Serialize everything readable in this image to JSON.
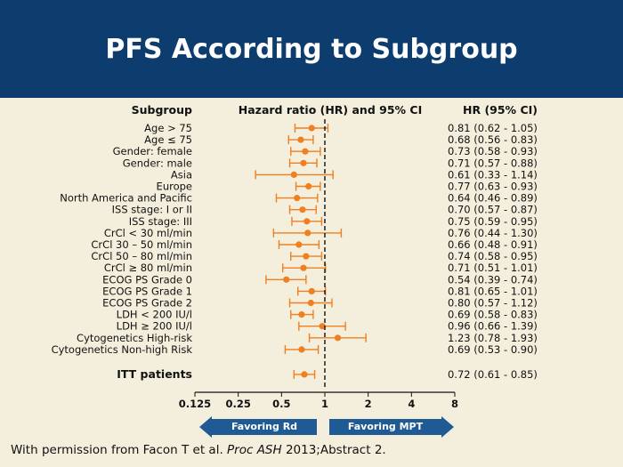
{
  "slide": {
    "title": "PFS According to Subgroup",
    "footnote_pre": "With permission from Facon T et al. ",
    "footnote_italic": "Proc ASH",
    "footnote_post": " 2013;Abstract 2."
  },
  "colors": {
    "header": "#0d3d6e",
    "background": "#f3efdc",
    "marker": "#f07f1f",
    "arrow": "#1f5a94"
  },
  "chart_data": {
    "type": "forest",
    "column_headers": {
      "subgroup": "Subgroup",
      "plot": "Hazard ratio (HR) and 95% CI",
      "hr": "HR (95% CI)"
    },
    "x_scale": "log2",
    "xlim": [
      0.125,
      8
    ],
    "x_ticks": [
      {
        "value": 0.125,
        "label": "0.125"
      },
      {
        "value": 0.25,
        "label": "0.25"
      },
      {
        "value": 0.5,
        "label": "0.5"
      },
      {
        "value": 1,
        "label": "1"
      },
      {
        "value": 2,
        "label": "2"
      },
      {
        "value": 4,
        "label": "4"
      },
      {
        "value": 8,
        "label": "8"
      }
    ],
    "reference_line": 1,
    "rows": [
      {
        "label": "Age > 75",
        "hr": 0.81,
        "lo": 0.62,
        "hi": 1.05,
        "text": "0.81 (0.62 - 1.05)"
      },
      {
        "label": "Age ≤ 75",
        "hr": 0.68,
        "lo": 0.56,
        "hi": 0.83,
        "text": "0.68 (0.56 - 0.83)"
      },
      {
        "label": "Gender: female",
        "hr": 0.73,
        "lo": 0.58,
        "hi": 0.93,
        "text": "0.73 (0.58 - 0.93)"
      },
      {
        "label": "Gender: male",
        "hr": 0.71,
        "lo": 0.57,
        "hi": 0.88,
        "text": "0.71 (0.57 - 0.88)"
      },
      {
        "label": "Asia",
        "hr": 0.61,
        "lo": 0.33,
        "hi": 1.14,
        "text": "0.61 (0.33 - 1.14)"
      },
      {
        "label": "Europe",
        "hr": 0.77,
        "lo": 0.63,
        "hi": 0.93,
        "text": "0.77 (0.63 - 0.93)"
      },
      {
        "label": "North America and Pacific",
        "hr": 0.64,
        "lo": 0.46,
        "hi": 0.89,
        "text": "0.64 (0.46 - 0.89)"
      },
      {
        "label": "ISS stage: I or II",
        "hr": 0.7,
        "lo": 0.57,
        "hi": 0.87,
        "text": "0.70 (0.57 - 0.87)"
      },
      {
        "label": "ISS stage: III",
        "hr": 0.75,
        "lo": 0.59,
        "hi": 0.95,
        "text": "0.75 (0.59 - 0.95)"
      },
      {
        "label": "CrCl < 30 ml/min",
        "hr": 0.76,
        "lo": 0.44,
        "hi": 1.3,
        "text": "0.76 (0.44 - 1.30)"
      },
      {
        "label": "CrCl 30 – 50 ml/min",
        "hr": 0.66,
        "lo": 0.48,
        "hi": 0.91,
        "text": "0.66 (0.48 - 0.91)"
      },
      {
        "label": "CrCl 50 – 80 ml/min",
        "hr": 0.74,
        "lo": 0.58,
        "hi": 0.95,
        "text": "0.74 (0.58 - 0.95)"
      },
      {
        "label": "CrCl ≥ 80 ml/min",
        "hr": 0.71,
        "lo": 0.51,
        "hi": 1.01,
        "text": "0.71 (0.51 - 1.01)"
      },
      {
        "label": "ECOG PS Grade 0",
        "hr": 0.54,
        "lo": 0.39,
        "hi": 0.74,
        "text": "0.54 (0.39 - 0.74)"
      },
      {
        "label": "ECOG PS Grade 1",
        "hr": 0.81,
        "lo": 0.65,
        "hi": 1.01,
        "text": "0.81 (0.65 - 1.01)"
      },
      {
        "label": "ECOG PS Grade 2",
        "hr": 0.8,
        "lo": 0.57,
        "hi": 1.12,
        "text": "0.80 (0.57 - 1.12)"
      },
      {
        "label": "LDH < 200 IU/l",
        "hr": 0.69,
        "lo": 0.58,
        "hi": 0.83,
        "text": "0.69 (0.58 - 0.83)"
      },
      {
        "label": "LDH ≥ 200 IU/l",
        "hr": 0.96,
        "lo": 0.66,
        "hi": 1.39,
        "text": "0.96 (0.66 - 1.39)"
      },
      {
        "label": "Cytogenetics High-risk",
        "hr": 1.23,
        "lo": 0.78,
        "hi": 1.93,
        "text": "1.23 (0.78 - 1.93)"
      },
      {
        "label": "Cytogenetics Non-high Risk",
        "hr": 0.69,
        "lo": 0.53,
        "hi": 0.9,
        "text": "0.69 (0.53 - 0.90)"
      }
    ],
    "overall": {
      "label": "ITT patients",
      "hr": 0.72,
      "lo": 0.61,
      "hi": 0.85,
      "text": "0.72 (0.61 - 0.85)"
    },
    "favoring_left": "Favoring Rd",
    "favoring_right": "Favoring MPT"
  }
}
